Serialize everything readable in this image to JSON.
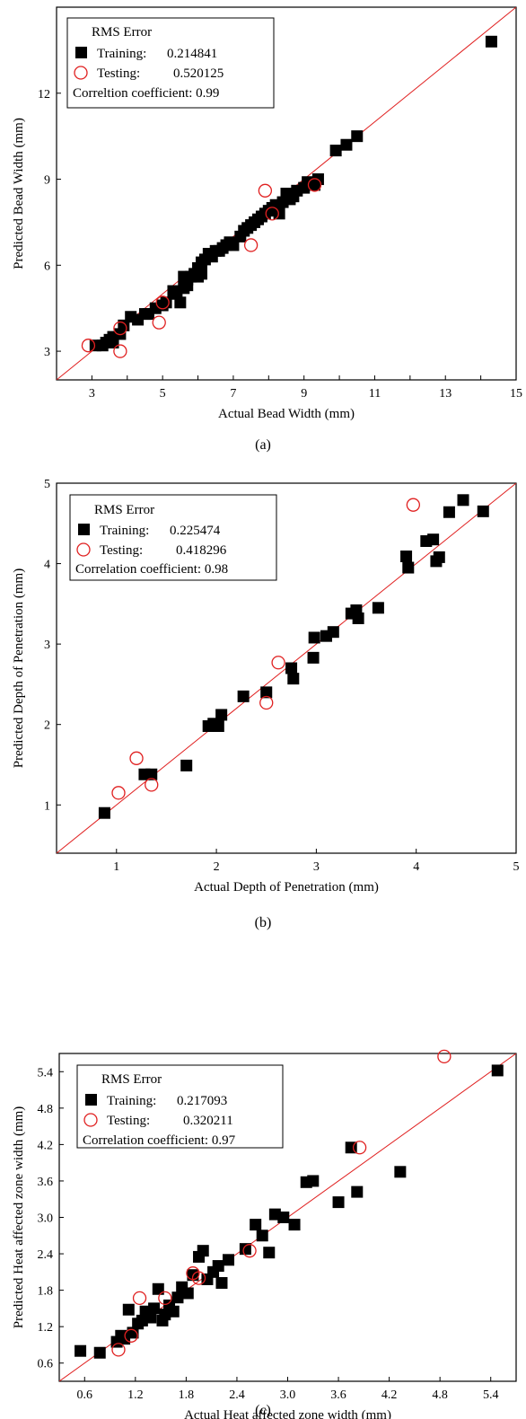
{
  "chart_data": [
    {
      "type": "scatter",
      "caption": "(a)",
      "xlabel": "Actual Bead Width (mm)",
      "ylabel": "Predicted Bead Width (mm)",
      "xlim": [
        2,
        15
      ],
      "ylim": [
        2,
        15
      ],
      "xticks": [
        "3",
        "4",
        "5",
        "6",
        "7",
        "8",
        "9",
        "10",
        "11",
        "12",
        "13",
        "14",
        "15"
      ],
      "xticks_v": [
        3,
        4,
        5,
        6,
        7,
        8,
        9,
        10,
        11,
        12,
        13,
        14,
        15
      ],
      "xticks_shown": [
        true,
        false,
        true,
        false,
        true,
        false,
        true,
        false,
        true,
        false,
        true,
        false,
        true
      ],
      "yticks": [
        "3",
        "6",
        "9",
        "12"
      ],
      "yticks_v": [
        3,
        6,
        9,
        12
      ],
      "legend": {
        "title": "RMS Error",
        "training_label": "Training:",
        "training_value": "0.214841",
        "testing_label": "Testing:",
        "testing_value": "0.520125",
        "corr": "Correltion coefficient: 0.99"
      },
      "grid": false,
      "reference_line": "y = x",
      "series": [
        {
          "name": "Training",
          "marker": "filled-square",
          "x": [
            3.1,
            3.3,
            3.4,
            3.5,
            3.6,
            3.6,
            3.8,
            3.9,
            4.1,
            4.3,
            4.5,
            4.6,
            4.8,
            5.0,
            5.1,
            5.3,
            5.4,
            5.5,
            5.6,
            5.6,
            5.7,
            5.7,
            5.8,
            5.9,
            6.0,
            6.0,
            6.1,
            6.1,
            6.2,
            6.3,
            6.4,
            6.5,
            6.6,
            6.7,
            6.8,
            6.9,
            7.0,
            7.2,
            7.3,
            7.4,
            7.5,
            7.6,
            7.7,
            7.8,
            7.9,
            8.0,
            8.1,
            8.2,
            8.3,
            8.4,
            8.5,
            8.6,
            8.7,
            8.8,
            9.0,
            9.1,
            9.3,
            9.4,
            9.9,
            10.2,
            10.5,
            14.3
          ],
          "y": [
            3.2,
            3.2,
            3.3,
            3.4,
            3.3,
            3.5,
            3.6,
            3.9,
            4.2,
            4.1,
            4.3,
            4.3,
            4.5,
            4.6,
            4.7,
            5.1,
            5.0,
            4.7,
            5.6,
            5.2,
            5.5,
            5.3,
            5.6,
            5.7,
            5.6,
            5.9,
            6.1,
            5.7,
            6.2,
            6.4,
            6.3,
            6.5,
            6.5,
            6.6,
            6.7,
            6.8,
            6.7,
            7.0,
            7.2,
            7.3,
            7.4,
            7.5,
            7.6,
            7.7,
            7.8,
            7.9,
            8.0,
            8.1,
            7.8,
            8.2,
            8.5,
            8.3,
            8.4,
            8.6,
            8.7,
            8.9,
            8.8,
            9.0,
            10.0,
            10.2,
            10.5,
            13.8
          ]
        },
        {
          "name": "Testing",
          "marker": "open-circle",
          "x": [
            2.9,
            3.8,
            3.8,
            4.9,
            5.0,
            7.5,
            7.9,
            8.1,
            9.3
          ],
          "y": [
            3.2,
            3.0,
            3.8,
            4.0,
            4.7,
            6.7,
            8.6,
            7.8,
            8.8
          ]
        }
      ]
    },
    {
      "type": "scatter",
      "caption": "(b)",
      "xlabel": "Actual Depth of Penetration (mm)",
      "ylabel": "Predicted Depth of Penetration (mm)",
      "xlim": [
        0.4,
        5
      ],
      "ylim": [
        0.4,
        5
      ],
      "xticks": [
        "1",
        "2",
        "3",
        "4",
        "5"
      ],
      "xticks_v": [
        1,
        2,
        3,
        4,
        5
      ],
      "yticks": [
        "1",
        "2",
        "3",
        "4",
        "5"
      ],
      "yticks_v": [
        1,
        2,
        3,
        4,
        5
      ],
      "legend": {
        "title": "RMS Error",
        "training_label": "Training:",
        "training_value": "0.225474",
        "testing_label": "Testing:",
        "testing_value": "0.418296",
        "corr": "Correlation coefficient: 0.98"
      },
      "grid": false,
      "reference_line": "y = x",
      "series": [
        {
          "name": "Training",
          "marker": "filled-square",
          "x": [
            0.88,
            1.28,
            1.35,
            1.7,
            1.92,
            1.97,
            2.02,
            2.05,
            2.27,
            2.5,
            2.75,
            2.77,
            2.97,
            2.98,
            3.1,
            3.17,
            3.35,
            3.4,
            3.42,
            3.62,
            3.9,
            3.92,
            4.1,
            4.17,
            4.2,
            4.23,
            4.33,
            4.47,
            4.67
          ],
          "y": [
            0.9,
            1.38,
            1.38,
            1.49,
            1.98,
            2.01,
            1.98,
            2.12,
            2.35,
            2.4,
            2.7,
            2.57,
            2.83,
            3.08,
            3.1,
            3.15,
            3.38,
            3.42,
            3.32,
            3.45,
            4.09,
            3.95,
            4.28,
            4.3,
            4.03,
            4.08,
            4.64,
            4.79,
            4.65
          ]
        },
        {
          "name": "Testing",
          "marker": "open-circle",
          "x": [
            1.02,
            1.2,
            1.35,
            2.5,
            2.62,
            3.97
          ],
          "y": [
            1.15,
            1.58,
            1.25,
            2.27,
            2.77,
            4.73
          ]
        }
      ]
    },
    {
      "type": "scatter",
      "caption": "(c)",
      "xlabel": "Actual Heat affected zone width (mm)",
      "ylabel": "Predicted Heat affected zone  width (mm)",
      "xlim": [
        0.3,
        5.7
      ],
      "ylim": [
        0.3,
        5.7
      ],
      "xticks": [
        "0.6",
        "1.2",
        "1.8",
        "2.4",
        "3.0",
        "3.6",
        "4.2",
        "4.8",
        "5.4"
      ],
      "xticks_v": [
        0.6,
        1.2,
        1.8,
        2.4,
        3.0,
        3.6,
        4.2,
        4.8,
        5.4
      ],
      "yticks": [
        "0.6",
        "1.2",
        "1.8",
        "2.4",
        "3.0",
        "3.6",
        "4.2",
        "4.8",
        "5.4"
      ],
      "yticks_v": [
        0.6,
        1.2,
        1.8,
        2.4,
        3.0,
        3.6,
        4.2,
        4.8,
        5.4
      ],
      "legend": {
        "title": "RMS Error",
        "training_label": "Training:",
        "training_value": "0.217093",
        "testing_label": "Testing:",
        "testing_value": "0.320211",
        "corr": "Correlation coefficient: 0.97"
      },
      "grid": false,
      "reference_line": "y = x",
      "series": [
        {
          "name": "Training",
          "marker": "filled-square",
          "x": [
            0.55,
            0.78,
            0.98,
            1.03,
            1.07,
            1.12,
            1.17,
            1.23,
            1.28,
            1.32,
            1.38,
            1.42,
            1.47,
            1.52,
            1.55,
            1.6,
            1.65,
            1.7,
            1.75,
            1.82,
            1.88,
            1.95,
            2.0,
            2.05,
            2.12,
            2.18,
            2.22,
            2.3,
            2.5,
            2.62,
            2.7,
            2.78,
            2.85,
            2.95,
            3.08,
            3.22,
            3.3,
            3.6,
            3.75,
            3.82,
            4.33,
            5.48
          ],
          "y": [
            0.8,
            0.77,
            0.95,
            1.05,
            1.0,
            1.48,
            1.1,
            1.25,
            1.3,
            1.45,
            1.35,
            1.5,
            1.82,
            1.3,
            1.4,
            1.55,
            1.45,
            1.68,
            1.85,
            1.75,
            2.05,
            2.35,
            2.45,
            1.98,
            2.1,
            2.2,
            1.92,
            2.3,
            2.48,
            2.88,
            2.7,
            2.42,
            3.05,
            3.0,
            2.88,
            3.58,
            3.6,
            3.25,
            4.15,
            3.42,
            3.75,
            5.42
          ]
        },
        {
          "name": "Testing",
          "marker": "open-circle",
          "x": [
            1.0,
            1.15,
            1.25,
            1.55,
            1.88,
            1.95,
            2.55,
            3.85,
            4.85
          ],
          "y": [
            0.82,
            1.05,
            1.67,
            1.67,
            2.08,
            2.0,
            2.45,
            4.15,
            5.65
          ]
        }
      ]
    }
  ]
}
